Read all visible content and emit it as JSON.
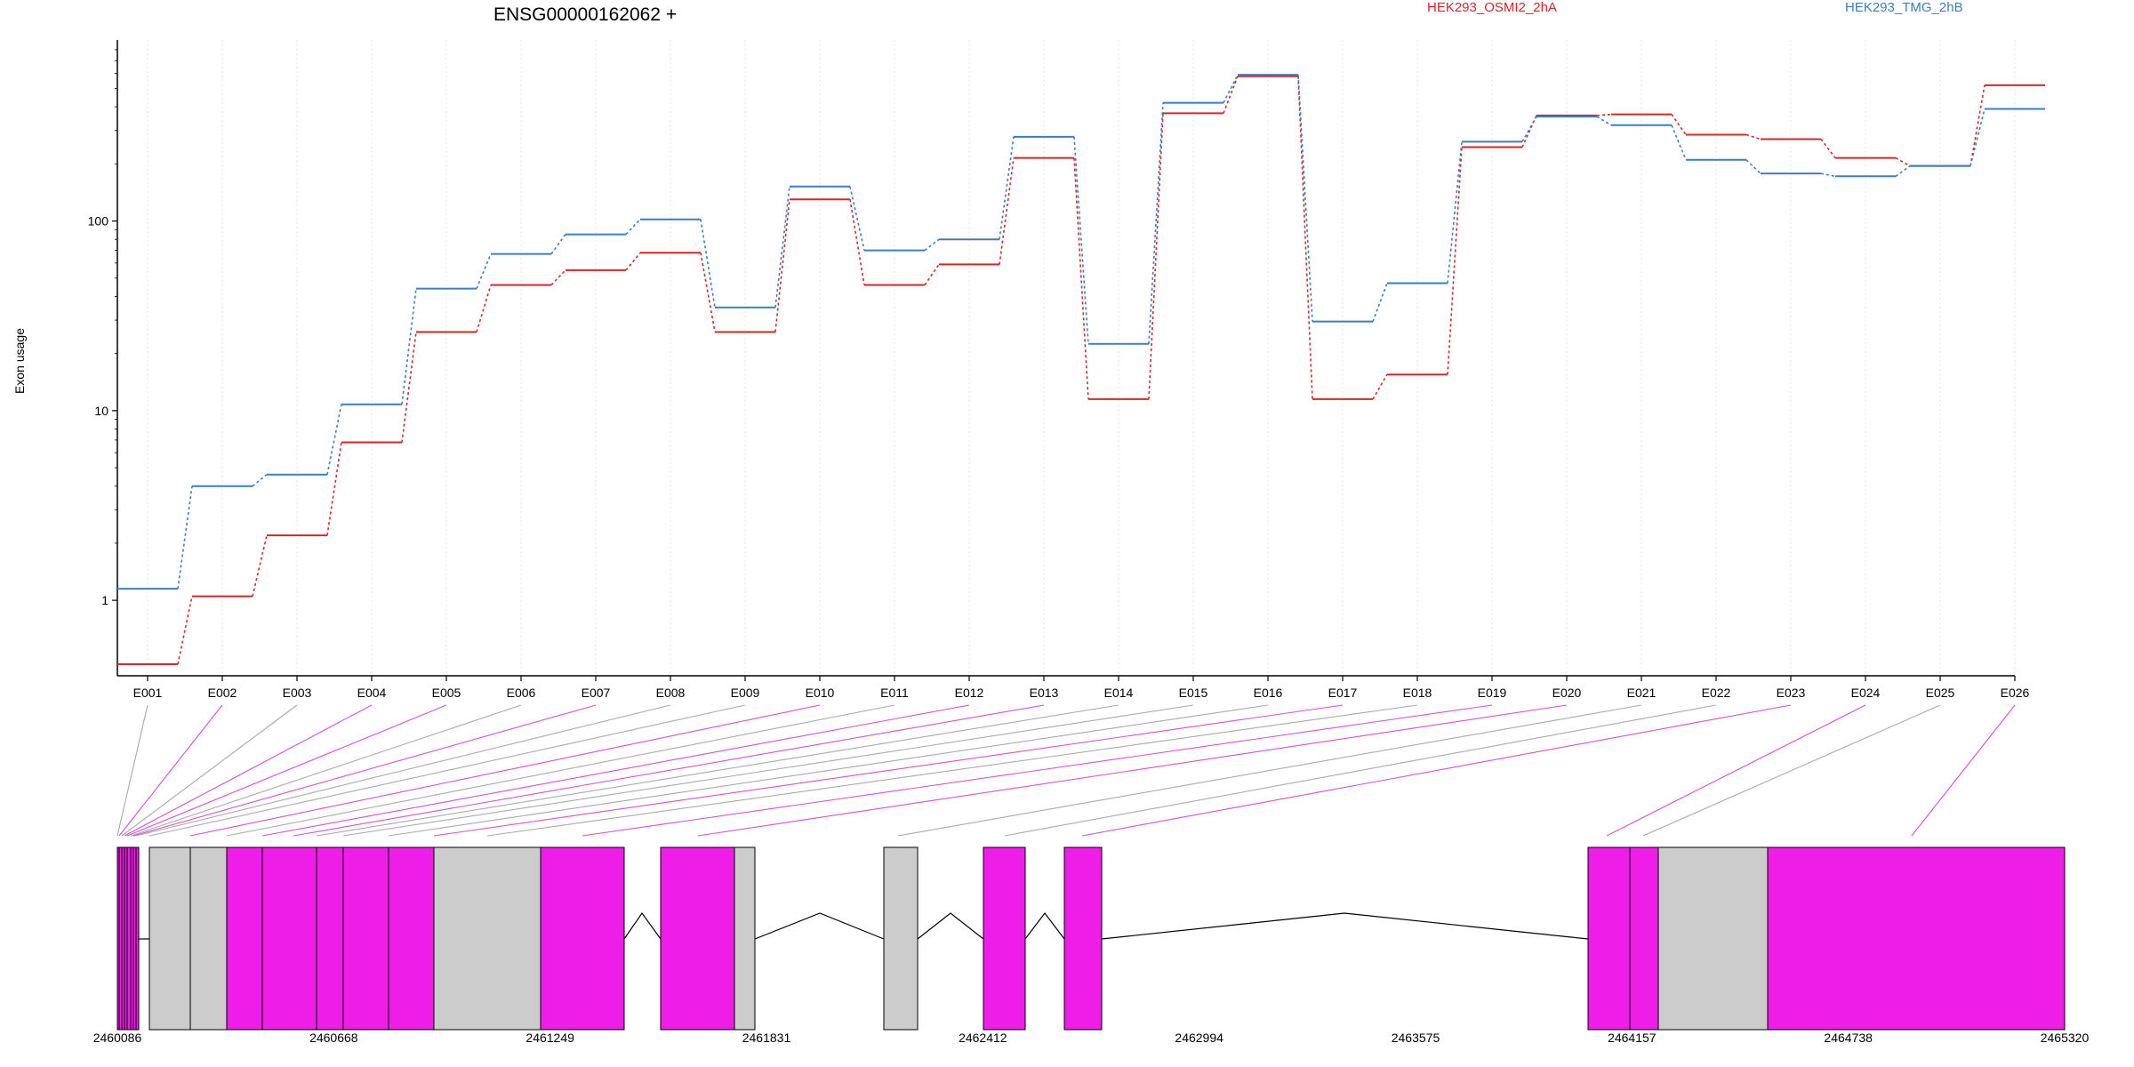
{
  "chart_data": [
    {
      "type": "line",
      "title": "ENSG00000162062 +",
      "ylabel": "Exon usage",
      "xlabel": "",
      "y_scale": "log",
      "ylim": [
        0.4,
        900
      ],
      "yticks": [
        1,
        10,
        100
      ],
      "ytick_labels": [
        "1",
        "10",
        "100"
      ],
      "grid": "vertical dotted lines at each exon",
      "legend_placement": "top",
      "categories": [
        "E001",
        "E002",
        "E003",
        "E004",
        "E005",
        "E006",
        "E007",
        "E008",
        "E009",
        "E010",
        "E011",
        "E012",
        "E013",
        "E014",
        "E015",
        "E016",
        "E017",
        "E018",
        "E019",
        "E020",
        "E021",
        "E022",
        "E023",
        "E024",
        "E025",
        "E026"
      ],
      "series": [
        {
          "name": "HEK293_OSMI2_2hA",
          "color": "#d62728",
          "values": [
            0.46,
            1.05,
            2.2,
            6.8,
            26,
            46,
            55,
            68,
            26,
            130,
            46,
            59,
            215,
            11.5,
            370,
            580,
            11.5,
            15.5,
            245,
            360,
            365,
            285,
            270,
            215,
            195,
            520
          ]
        },
        {
          "name": "HEK293_TMG_2hB",
          "color": "#3a7fc1",
          "values": [
            1.15,
            4.0,
            4.6,
            10.8,
            44,
            67,
            85,
            102,
            35,
            152,
            70,
            80,
            278,
            22.5,
            420,
            590,
            29.5,
            47,
            262,
            355,
            320,
            210,
            178,
            172,
            195,
            390
          ]
        }
      ]
    },
    {
      "type": "gene_model",
      "xtick_labels": [
        "2460086",
        "2460668",
        "2461249",
        "2461831",
        "2462412",
        "2462994",
        "2463575",
        "2464157",
        "2464738",
        "2465320"
      ],
      "exon_highlight_color": "#ee1ee8",
      "exon_plain_color": "#cccccc"
    }
  ]
}
